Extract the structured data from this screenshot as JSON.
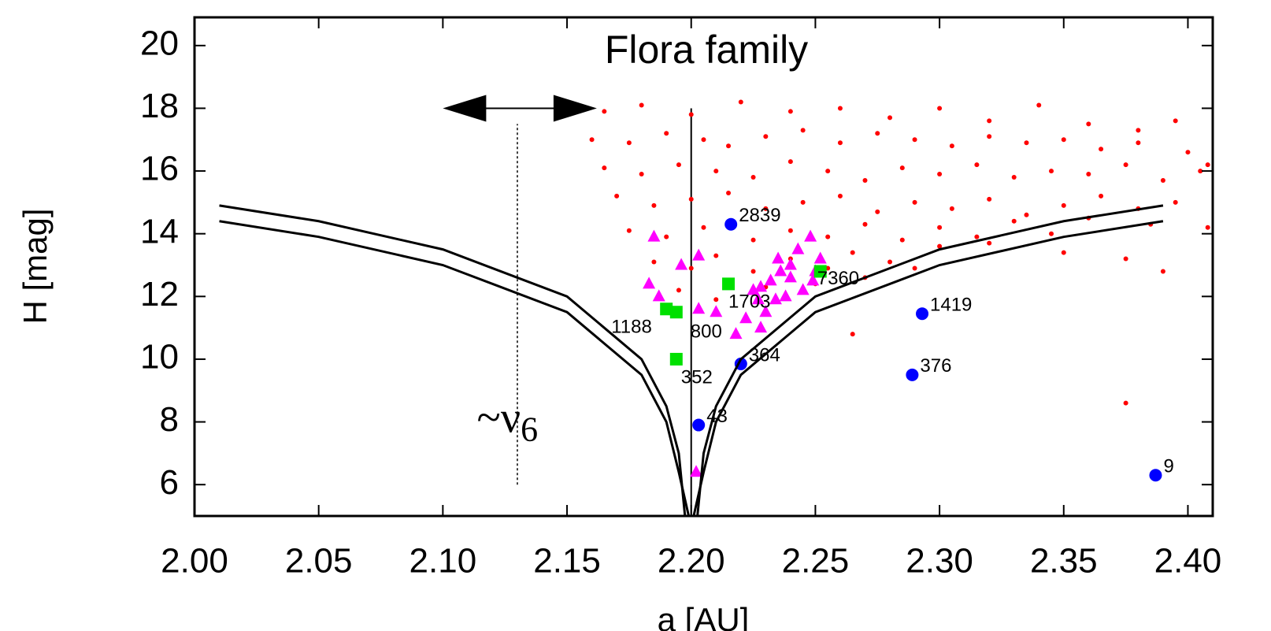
{
  "chart_data": {
    "type": "scatter",
    "title": "Flora family",
    "xlabel": "a [AU]",
    "ylabel": "H [mag]",
    "xlim": [
      2.0,
      2.41
    ],
    "ylim": [
      5,
      20.9
    ],
    "xticks": [
      {
        "value": 2.0,
        "label": "2.00"
      },
      2.05,
      {
        "value": 2.1,
        "label": "2.10"
      },
      2.15,
      {
        "value": 2.2,
        "label": "2.20"
      },
      2.25,
      {
        "value": 2.3,
        "label": "2.30"
      },
      2.35,
      {
        "value": 2.4,
        "label": "2.40"
      }
    ],
    "yticks": [
      6,
      8,
      10,
      12,
      14,
      16,
      18,
      20
    ],
    "series": [
      {
        "marker": "dot",
        "color": "#ff0000",
        "x": [
          2.165,
          2.18,
          2.2,
          2.22,
          2.24,
          2.26,
          2.28,
          2.3,
          2.32,
          2.34,
          2.36,
          2.38,
          2.395,
          2.16,
          2.175,
          2.19,
          2.205,
          2.215,
          2.23,
          2.245,
          2.26,
          2.275,
          2.29,
          2.305,
          2.32,
          2.335,
          2.35,
          2.365,
          2.38,
          2.4,
          2.408,
          2.165,
          2.18,
          2.195,
          2.21,
          2.225,
          2.24,
          2.255,
          2.27,
          2.285,
          2.3,
          2.315,
          2.33,
          2.345,
          2.36,
          2.375,
          2.39,
          2.405,
          2.17,
          2.185,
          2.2,
          2.215,
          2.23,
          2.245,
          2.26,
          2.275,
          2.29,
          2.305,
          2.32,
          2.335,
          2.35,
          2.365,
          2.38,
          2.395,
          2.175,
          2.19,
          2.205,
          2.225,
          2.24,
          2.255,
          2.27,
          2.285,
          2.3,
          2.315,
          2.33,
          2.345,
          2.36,
          2.385,
          2.185,
          2.2,
          2.21,
          2.225,
          2.24,
          2.255,
          2.265,
          2.28,
          2.3,
          2.32,
          2.35,
          2.375,
          2.195,
          2.21,
          2.23,
          2.25,
          2.27,
          2.29,
          2.265,
          2.375,
          2.39,
          2.408
        ],
        "values": [
          17.9,
          18.1,
          17.8,
          18.2,
          17.9,
          18.0,
          17.7,
          18.0,
          17.6,
          18.1,
          17.5,
          17.3,
          17.6,
          17.0,
          16.9,
          17.2,
          17.0,
          16.8,
          17.1,
          17.3,
          16.9,
          17.2,
          17.0,
          16.8,
          17.1,
          16.9,
          17.0,
          16.7,
          16.9,
          16.6,
          16.2,
          16.1,
          15.9,
          16.2,
          16.0,
          15.8,
          16.3,
          16.0,
          15.7,
          16.1,
          15.9,
          16.2,
          15.8,
          16.0,
          15.9,
          16.2,
          15.7,
          16.0,
          15.2,
          14.9,
          15.1,
          15.3,
          14.8,
          15.0,
          15.2,
          14.7,
          15.0,
          14.8,
          15.1,
          14.6,
          14.9,
          15.2,
          14.8,
          15.0,
          14.1,
          13.9,
          14.2,
          13.8,
          14.1,
          13.9,
          14.3,
          13.8,
          14.2,
          13.9,
          14.4,
          14.0,
          14.5,
          14.3,
          13.1,
          12.9,
          13.3,
          12.8,
          13.2,
          12.9,
          13.4,
          13.1,
          13.6,
          13.7,
          13.4,
          13.2,
          12.2,
          11.9,
          12.3,
          12.4,
          12.6,
          12.9,
          10.8,
          8.6,
          12.8,
          14.2
        ]
      },
      {
        "marker": "triangle",
        "color": "#ff00ff",
        "x": [
          2.185,
          2.196,
          2.203,
          2.183,
          2.187,
          2.203,
          2.21,
          2.225,
          2.222,
          2.218,
          2.228,
          2.23,
          2.227,
          2.232,
          2.235,
          2.24,
          2.243,
          2.248,
          2.238,
          2.245,
          2.25,
          2.252,
          2.24,
          2.234,
          2.228,
          2.202,
          2.249,
          2.236
        ],
        "values": [
          13.9,
          13.0,
          13.3,
          12.4,
          12.0,
          11.6,
          11.5,
          12.2,
          11.3,
          10.8,
          11.0,
          11.5,
          11.9,
          12.5,
          13.2,
          13.0,
          13.5,
          13.9,
          12.0,
          12.2,
          12.8,
          13.2,
          12.6,
          11.9,
          12.3,
          6.4,
          12.5,
          12.8
        ]
      },
      {
        "marker": "square",
        "color": "#00e000",
        "x": [
          2.215,
          2.252,
          2.19,
          2.194,
          2.194
        ],
        "values": [
          12.4,
          12.8,
          11.6,
          11.5,
          10.0
        ],
        "labels": [
          "1703",
          "7360",
          "1188",
          "800",
          "352"
        ]
      },
      {
        "marker": "circle",
        "color": "#0000ff",
        "x": [
          2.216,
          2.293,
          2.22,
          2.289,
          2.203,
          2.387
        ],
        "values": [
          14.3,
          11.45,
          9.85,
          9.5,
          7.9,
          6.3
        ],
        "labels": [
          "2839",
          "1419",
          "364",
          "376",
          "43",
          "9"
        ]
      },
      {
        "marker": "line",
        "color": "#000000",
        "x": [
          2.01,
          2.05,
          2.1,
          2.15,
          2.18,
          2.19,
          2.195,
          2.1975
        ],
        "values": [
          14.9,
          14.4,
          13.5,
          12.0,
          10.0,
          8.5,
          7.0,
          5.0
        ]
      },
      {
        "marker": "line",
        "color": "#000000",
        "x": [
          2.01,
          2.05,
          2.1,
          2.15,
          2.18,
          2.19,
          2.195,
          2.199
        ],
        "values": [
          14.4,
          13.9,
          13.0,
          11.5,
          9.5,
          8.0,
          6.4,
          5.0
        ]
      },
      {
        "marker": "line",
        "color": "#000000",
        "x": [
          2.39,
          2.35,
          2.3,
          2.25,
          2.22,
          2.21,
          2.205,
          2.2025
        ],
        "values": [
          14.9,
          14.4,
          13.5,
          12.0,
          10.0,
          8.5,
          7.0,
          5.0
        ]
      },
      {
        "marker": "line",
        "color": "#000000",
        "x": [
          2.39,
          2.35,
          2.3,
          2.25,
          2.22,
          2.21,
          2.205,
          2.201
        ],
        "values": [
          14.4,
          13.9,
          13.0,
          11.5,
          9.5,
          8.0,
          6.4,
          5.0
        ]
      }
    ],
    "vlines": [
      {
        "x": 2.2,
        "y": [
          5,
          18
        ],
        "dashed": false
      },
      {
        "x": 2.13,
        "y": [
          6,
          17.5
        ],
        "dashed": true
      }
    ],
    "arrow": {
      "x": [
        2.1,
        2.162
      ],
      "y": 18
    },
    "annotation": {
      "text": "~ν",
      "sub": "6",
      "x": 2.126,
      "y": 8
    }
  }
}
